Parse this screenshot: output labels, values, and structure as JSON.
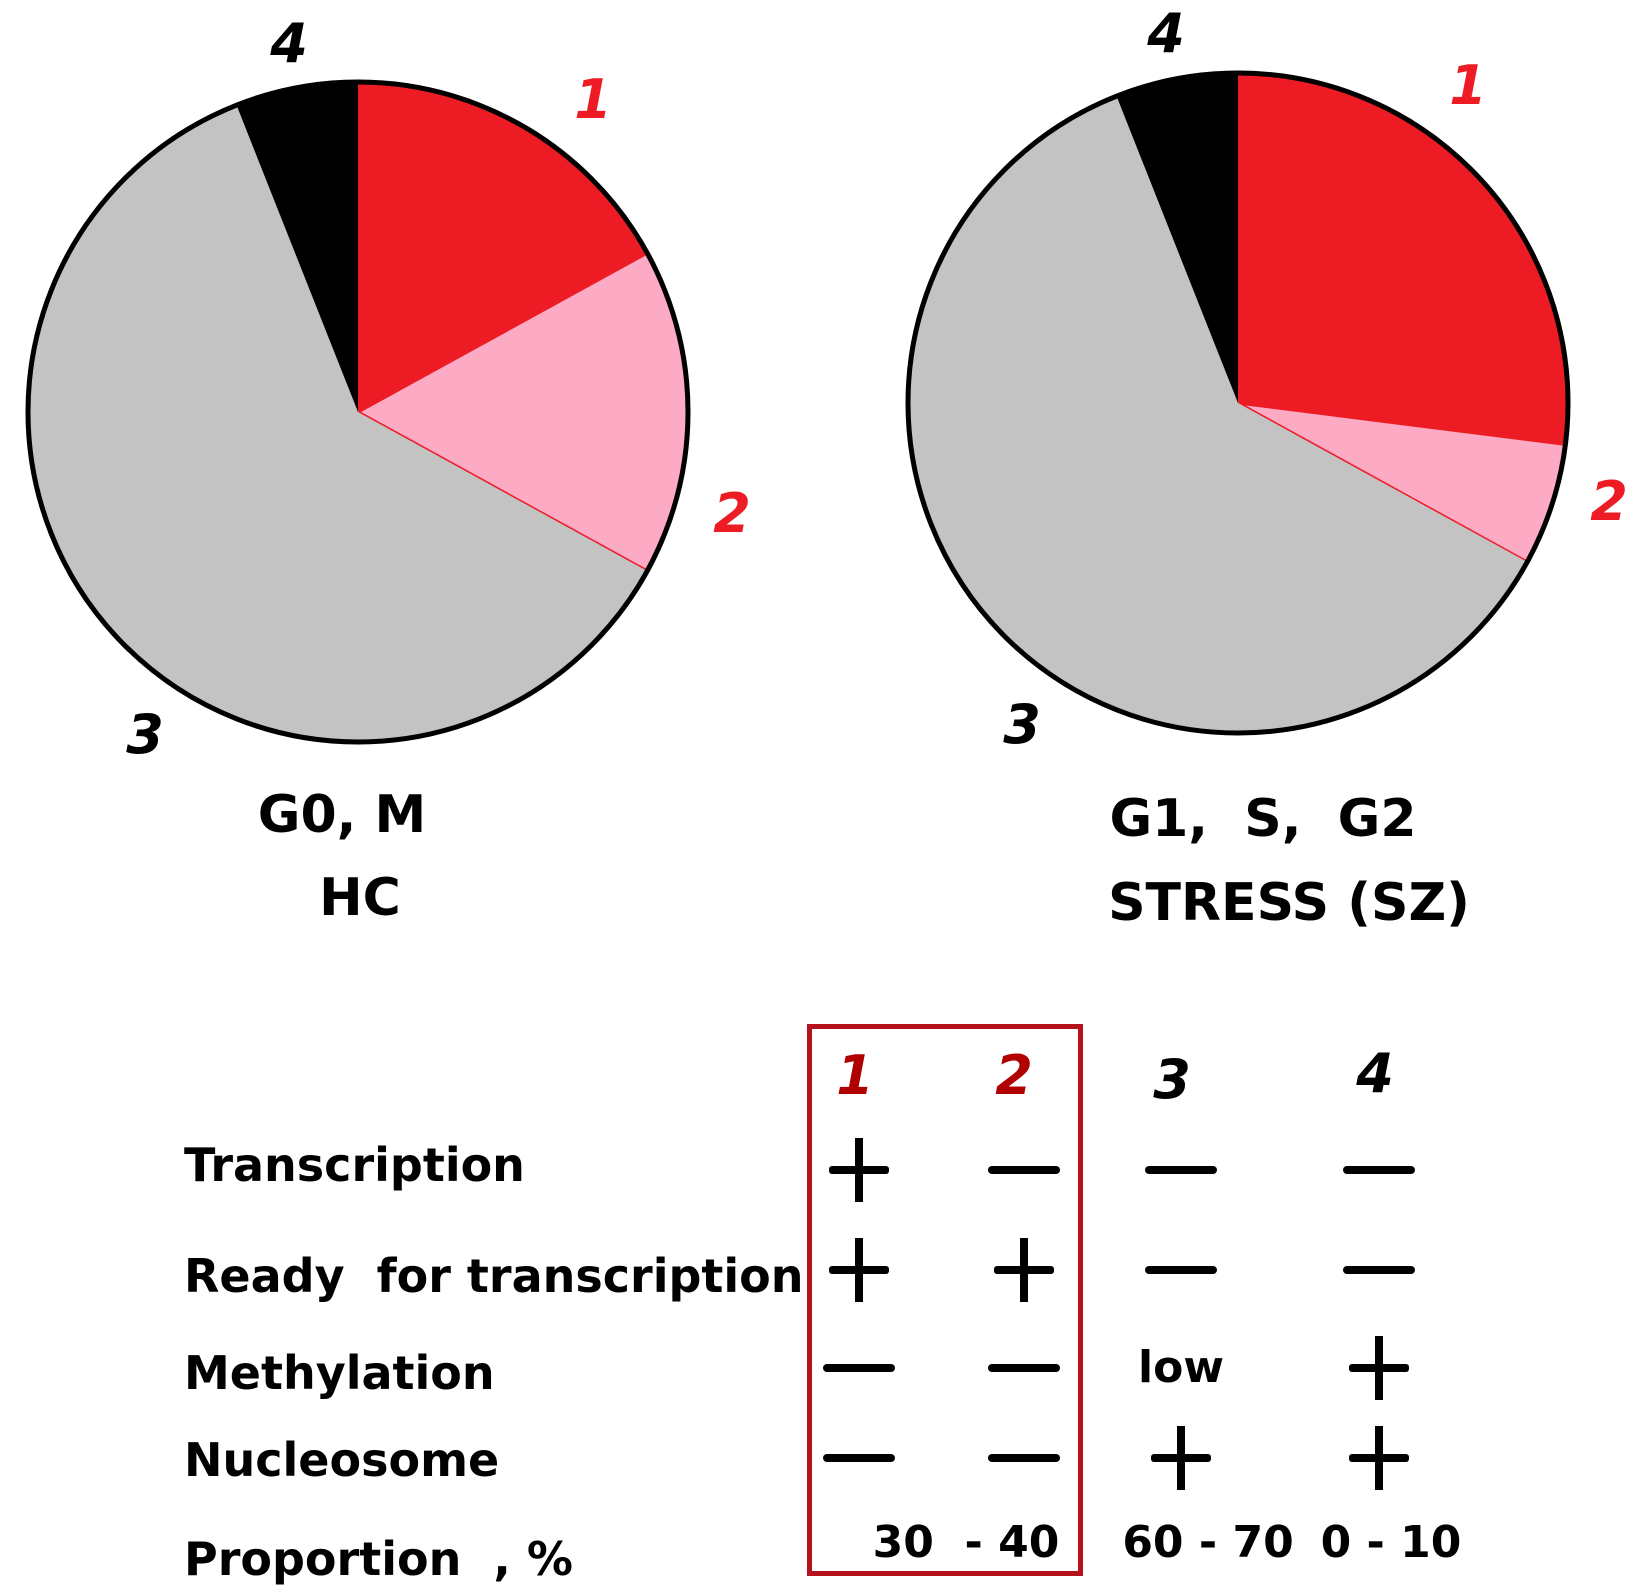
{
  "chart_data": [
    {
      "type": "pie",
      "title": "G0, M",
      "subtitle": "HC",
      "categories": [
        "1",
        "2",
        "3",
        "4"
      ],
      "values": [
        17,
        16,
        61,
        6
      ],
      "colors": [
        "#ed1c24",
        "#fdaac4",
        "#c3c3c3",
        "#000000"
      ]
    },
    {
      "type": "pie",
      "title": "G1,  S,  G2",
      "subtitle": "STRESS (SZ)",
      "categories": [
        "1",
        "2",
        "3",
        "4"
      ],
      "values": [
        27,
        6,
        61,
        6
      ],
      "colors": [
        "#ed1c24",
        "#fdaac4",
        "#c3c3c3",
        "#000000"
      ]
    }
  ],
  "table": {
    "columns": [
      "1",
      "2",
      "3",
      "4"
    ],
    "rows": [
      {
        "label": "Transcription",
        "values": [
          "+",
          "-",
          "-",
          "-"
        ]
      },
      {
        "label": "Ready  for transcription",
        "values": [
          "+",
          "+",
          "-",
          "-"
        ]
      },
      {
        "label": "Methylation",
        "values": [
          "-",
          "-",
          "low",
          "+"
        ]
      },
      {
        "label": "Nucleosome",
        "values": [
          "-",
          "-",
          "+",
          "+"
        ]
      }
    ],
    "proportion_label": "Proportion  , %",
    "proportion_values": [
      "30  - 40",
      "60 - 70",
      "0 - 10"
    ]
  }
}
